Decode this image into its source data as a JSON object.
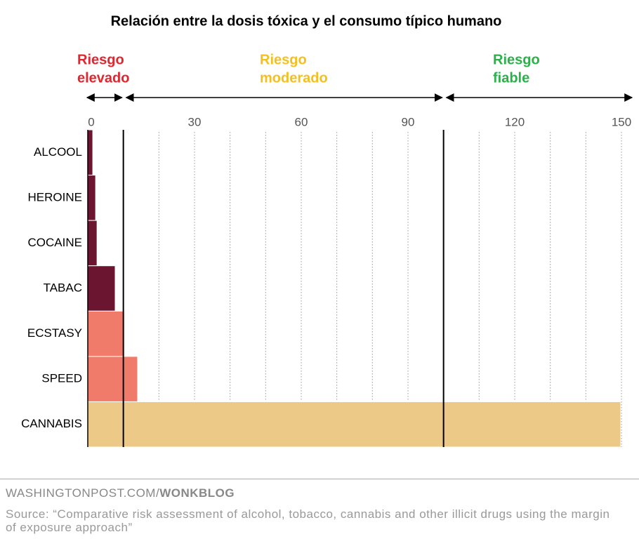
{
  "chart_data": {
    "type": "barh",
    "title": "Relación entre la dosis tóxica y el consumo típico humano",
    "categories": [
      "ALCOOL",
      "HEROINE",
      "COCAINE",
      "TABAC",
      "ECSTASY",
      "SPEED",
      "CANNABIS"
    ],
    "values": [
      1.4,
      2.2,
      2.6,
      7.7,
      10.3,
      14,
      149.8
    ],
    "colors": [
      "#6b1530",
      "#6b1530",
      "#6b1530",
      "#6b1530",
      "#f07b6b",
      "#f07b6b",
      "#edc987"
    ],
    "xlim": [
      0,
      150
    ],
    "xticks": [
      0,
      30,
      60,
      90,
      120,
      150
    ],
    "grid_lines": [
      20,
      30,
      40,
      50,
      60,
      70,
      80,
      90,
      110,
      120,
      130,
      140,
      150
    ],
    "zones": [
      {
        "label": [
          "Riesgo",
          "elevado"
        ],
        "color": "#e0262f",
        "range": [
          0,
          10
        ]
      },
      {
        "label": [
          "Riesgo",
          "moderado"
        ],
        "color": "#f3c01f",
        "range": [
          10,
          100
        ]
      },
      {
        "label": [
          "Riesgo",
          "fiable"
        ],
        "color": "#2bb04a",
        "range": [
          100,
          150
        ]
      }
    ]
  },
  "footer": {
    "site": "WASHINGTONPOST.COM/",
    "blog": "WONKBLOG",
    "source": "Source: “Comparative risk assessment of alcohol, tobacco, cannabis and other illicit drugs using the margin of exposure approach”"
  }
}
